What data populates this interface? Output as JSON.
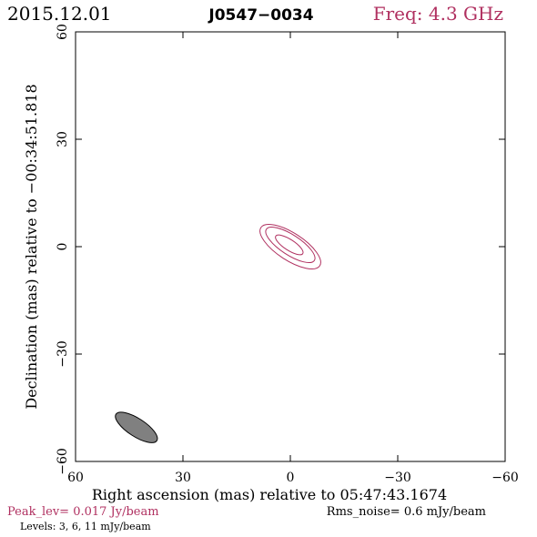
{
  "header": {
    "date": "2015.12.01",
    "source": "J0547−0034",
    "freq": "Freq: 4.3 GHz"
  },
  "footer": {
    "peak": "Peak_lev=  0.017 Jy/beam",
    "rms": "Rms_noise=   0.6 mJy/beam",
    "levels": "Levels:   3,   6,   11 mJy/beam"
  },
  "colors": {
    "accent": "#b03060",
    "axis": "#000000",
    "beam_fill": "#808080"
  },
  "chart_data": {
    "type": "contour",
    "xlabel": "Right ascension (mas) relative to 05:47:43.1674",
    "ylabel": "Declination (mas) relative to −00:34:51.818",
    "xlim": [
      60,
      -60
    ],
    "ylim": [
      -60,
      60
    ],
    "xticks": [
      {
        "value": 60,
        "label": "60"
      },
      {
        "value": 30,
        "label": "30"
      },
      {
        "value": 0,
        "label": "0"
      },
      {
        "value": -30,
        "label": "−30"
      },
      {
        "value": -60,
        "label": "−60"
      }
    ],
    "yticks": [
      {
        "value": -60,
        "label": "−60"
      },
      {
        "value": -30,
        "label": "−30"
      },
      {
        "value": 0,
        "label": "0"
      },
      {
        "value": 30,
        "label": "30"
      },
      {
        "value": 60,
        "label": "60"
      }
    ],
    "contours": [
      {
        "level_mJy": 3,
        "center_x": 0,
        "center_y": 0,
        "semi_major": 9.8,
        "semi_minor": 3.8,
        "angle_deg": 33
      },
      {
        "level_mJy": 6,
        "center_x": 0,
        "center_y": 0.5,
        "semi_major": 8.0,
        "semi_minor": 2.8,
        "angle_deg": 33
      },
      {
        "level_mJy": 11,
        "center_x": 0.3,
        "center_y": 0.5,
        "semi_major": 4.5,
        "semi_minor": 1.5,
        "angle_deg": 33
      }
    ],
    "beam": {
      "center_x": 43,
      "center_y": -50.5,
      "semi_major": 6.8,
      "semi_minor": 2.5,
      "angle_deg": 33
    }
  }
}
